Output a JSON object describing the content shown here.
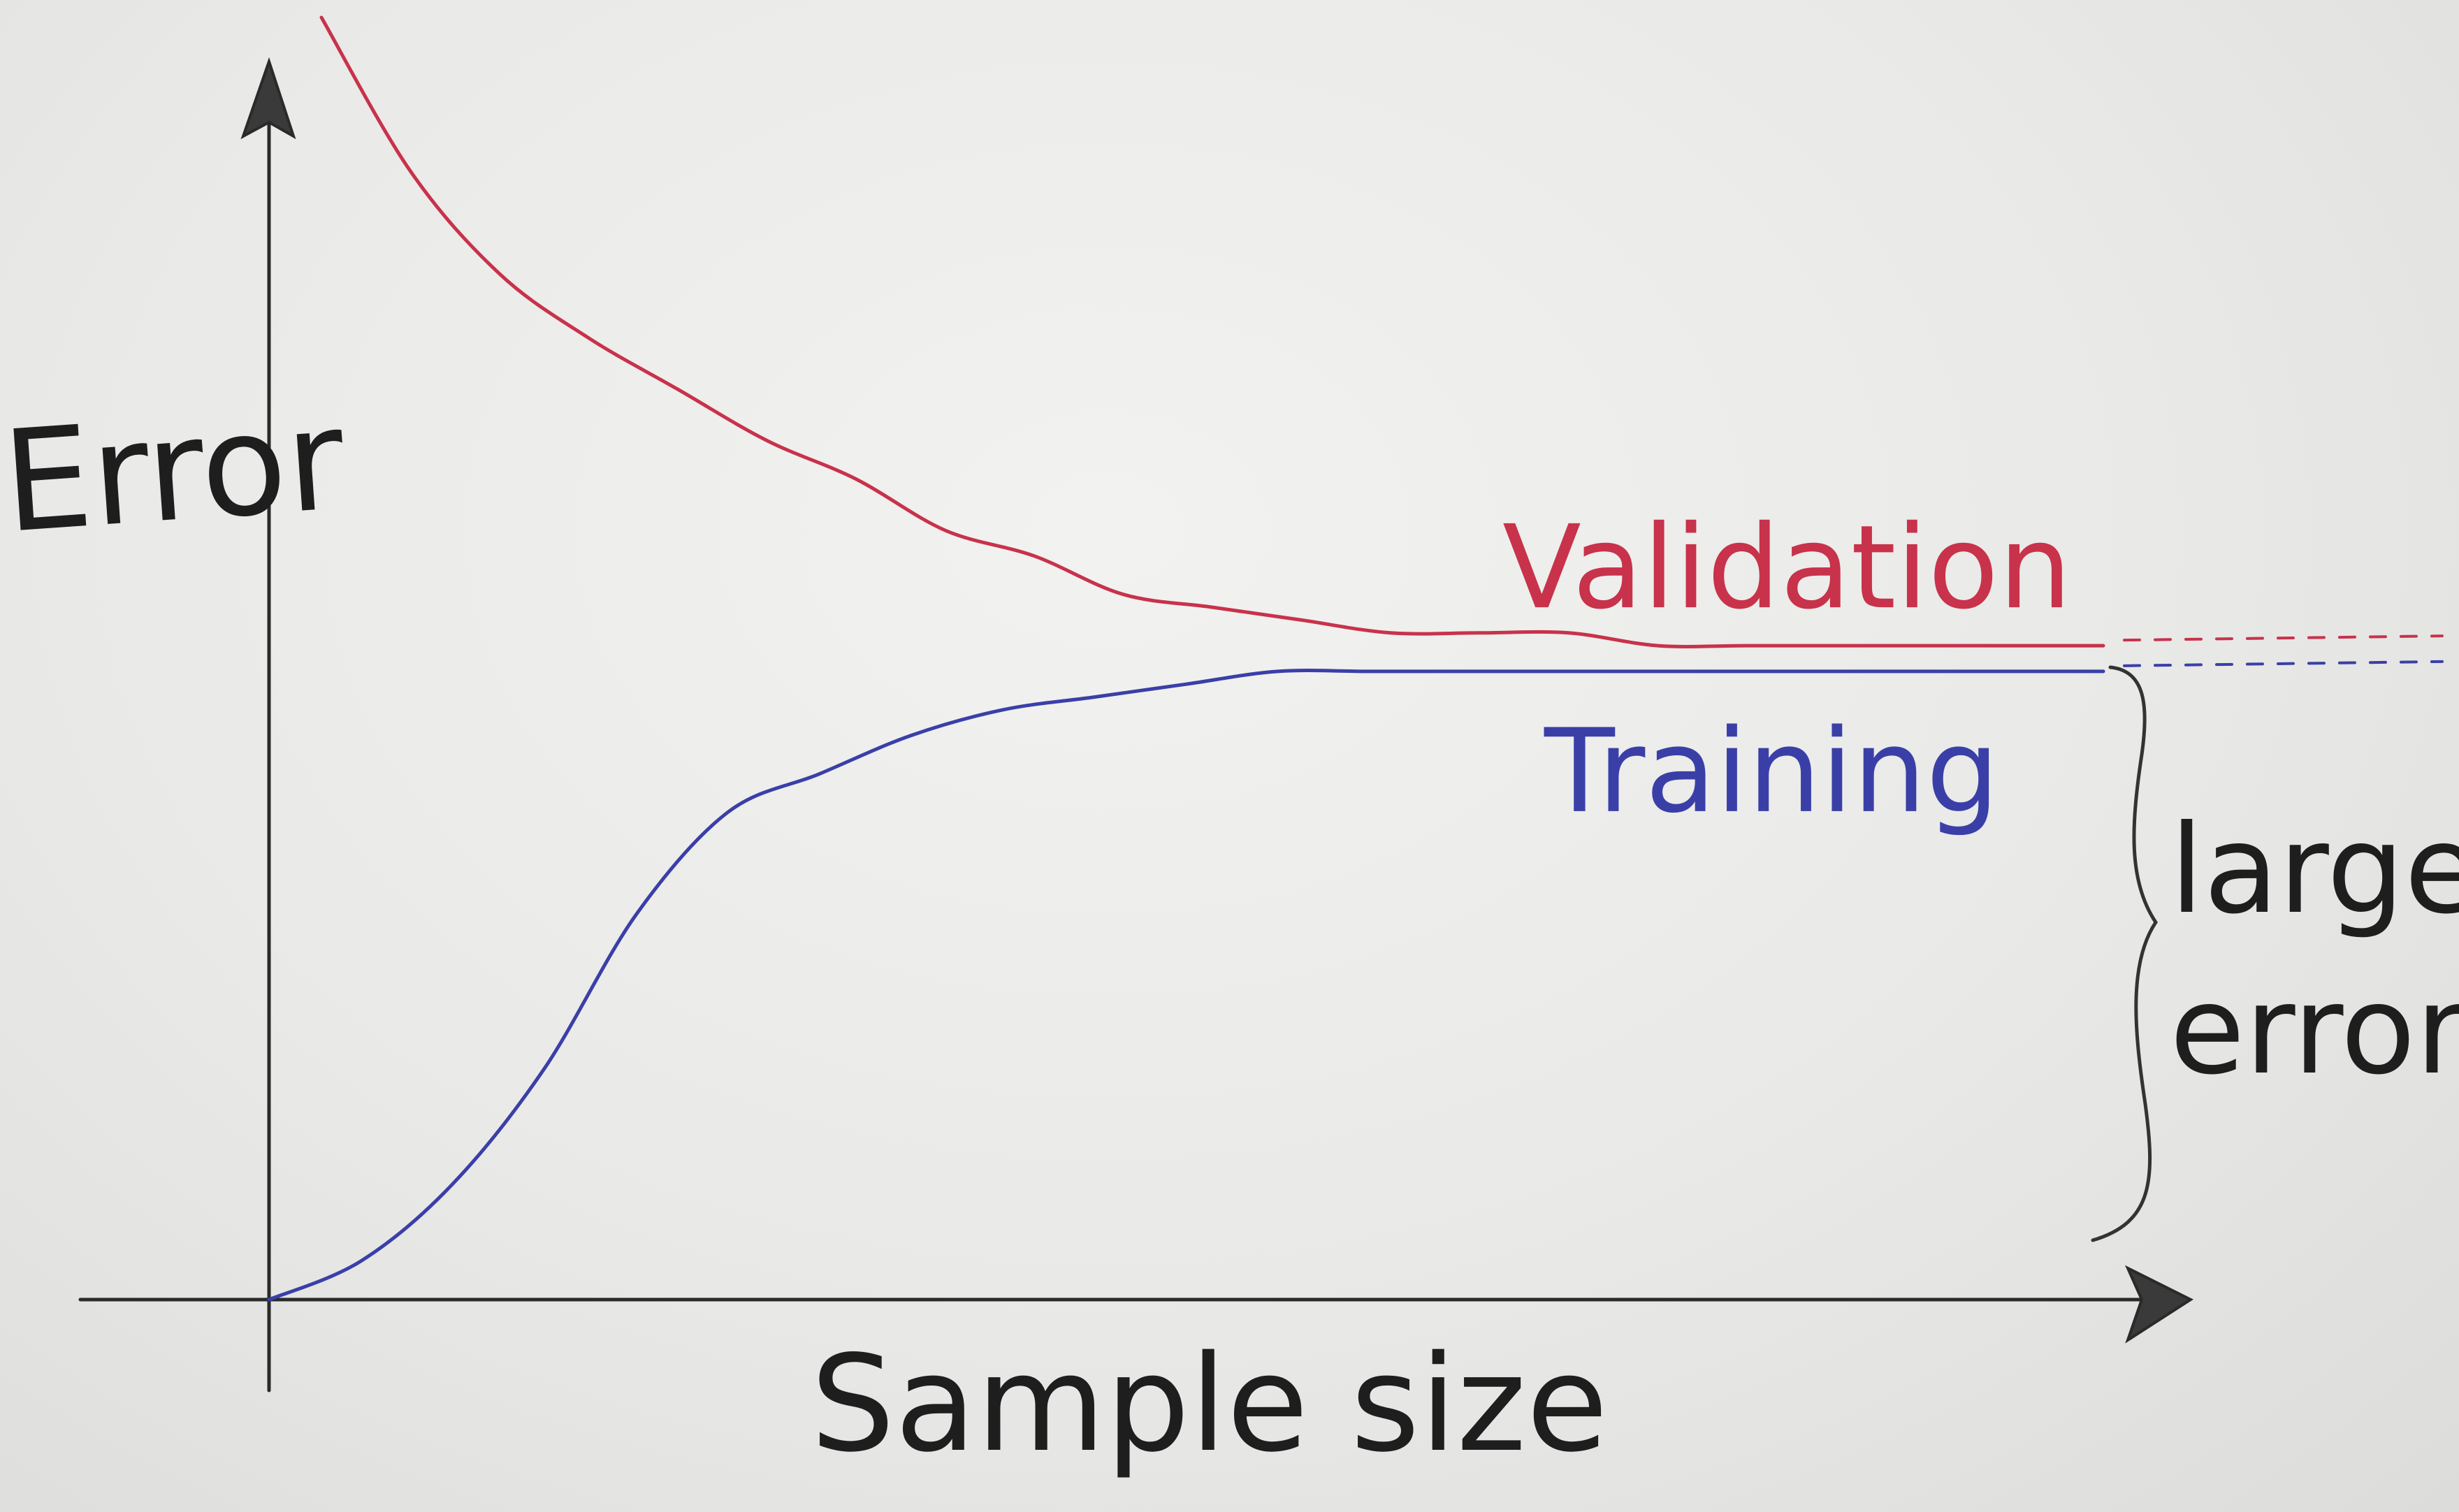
{
  "chart_data": {
    "type": "line",
    "title": "",
    "xlabel": "Sample size",
    "ylabel": "Error",
    "x": [
      0,
      0.05,
      0.1,
      0.15,
      0.2,
      0.25,
      0.3,
      0.35,
      0.4,
      0.45,
      0.5,
      0.55,
      0.6,
      0.65,
      0.7,
      0.75,
      0.8,
      0.85,
      0.9,
      0.95,
      1.0
    ],
    "xlim": [
      0,
      1.1
    ],
    "ylim": [
      0,
      1.0
    ],
    "grid": false,
    "legend": "inline labels",
    "series": [
      {
        "name": "Validation",
        "color": "#c8324b",
        "values": [
          1.0,
          0.88,
          0.8,
          0.75,
          0.71,
          0.67,
          0.64,
          0.6,
          0.58,
          0.55,
          0.54,
          0.53,
          0.52,
          0.52,
          0.52,
          0.51,
          0.51,
          0.51,
          0.51,
          0.51,
          0.51
        ]
      },
      {
        "name": "Training",
        "color": "#3a3fa8",
        "values": [
          0.0,
          0.03,
          0.09,
          0.18,
          0.3,
          0.38,
          0.41,
          0.44,
          0.46,
          0.47,
          0.48,
          0.49,
          0.49,
          0.49,
          0.49,
          0.49,
          0.49,
          0.49,
          0.49,
          0.49,
          0.49
        ]
      }
    ],
    "annotations": [
      {
        "text": "large error",
        "line1": "large",
        "line2": "error",
        "target": "gap between Training level and x-axis"
      }
    ],
    "extensions": "dashed continuation of both curves beyond x = 1.0"
  }
}
